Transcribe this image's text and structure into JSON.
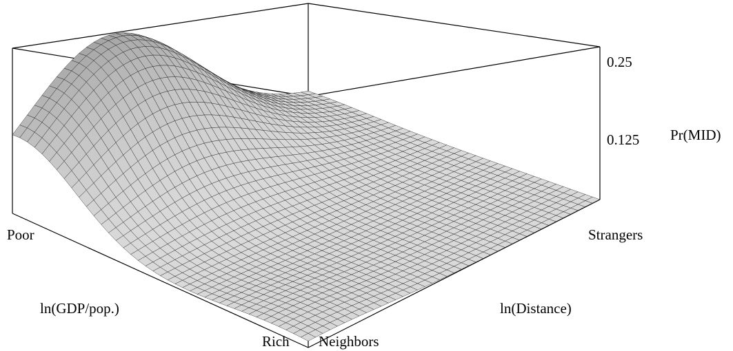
{
  "chart_data": {
    "type": "surface",
    "title": "",
    "zlabel": "Pr(MID)",
    "zticks": [
      "0.25",
      "0.125"
    ],
    "xlabel": "ln(GDP/pop.)",
    "x_end_labels": [
      "Poor",
      "Rich"
    ],
    "ylabel": "ln(Distance)",
    "y_end_labels": [
      "Neighbors",
      "Strangers"
    ],
    "zlim": [
      0,
      0.25
    ],
    "grid": "mesh",
    "surface": {
      "description_of_shape": "probability highest for poor neighbors, decays with income and with distance",
      "peak_value": 0.235,
      "peak_location": {
        "income": "Poor",
        "distance": "Neighbors (near-mid)"
      },
      "floor_value": 0.0
    },
    "colors": {
      "surface_light": "#e6e6e6",
      "surface_dark": "#555555",
      "mesh": "#000000"
    }
  }
}
